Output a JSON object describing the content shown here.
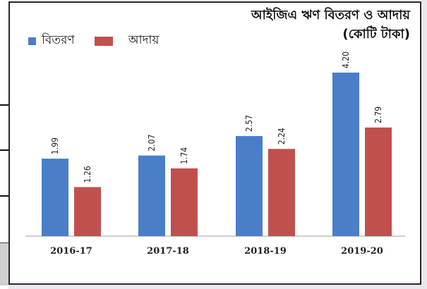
{
  "chart_data": {
    "type": "bar",
    "title": [
      "আইজিএ  ঋণ বিতরণ ও আদায়",
      "(কোটি টাকা)"
    ],
    "categories": [
      "2016-17",
      "2017-18",
      "2018-19",
      "2019-20"
    ],
    "series": [
      {
        "name": "বিতরণ",
        "color": "#4a7ec9",
        "values": [
          1.99,
          2.07,
          2.57,
          4.2
        ],
        "labels": [
          "1.99",
          "2.07",
          "2.57",
          "4.20"
        ]
      },
      {
        "name": "আদায়",
        "color": "#c0504d",
        "values": [
          1.26,
          1.74,
          2.24,
          2.79
        ],
        "labels": [
          "1.26",
          "1.74",
          "2.24",
          "2.79"
        ]
      }
    ],
    "xlabel": "",
    "ylabel": "",
    "ylim": [
      0,
      4.4
    ],
    "grid": false,
    "legend_position": "top-left"
  }
}
